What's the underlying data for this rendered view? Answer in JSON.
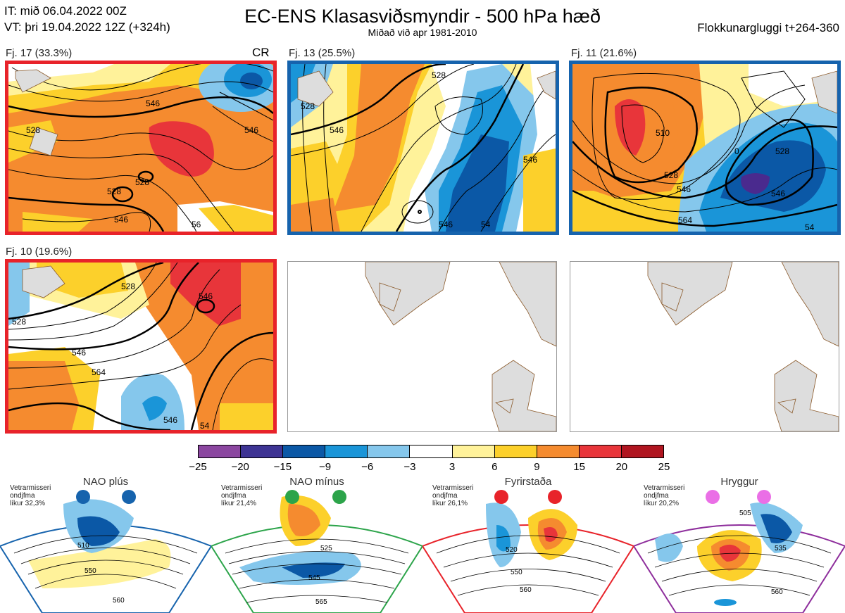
{
  "header": {
    "it_line": "IT: mið 06.04.2022 00Z",
    "vt_line": "VT: þri 19.04.2022 12Z  (+324h)",
    "title": "EC-ENS Klasasviðsmyndir - 500 hPa hæð",
    "subtitle": "Miðað við apr 1981-2010",
    "window": "Flokkunargluggi t+264-360"
  },
  "clusters": [
    {
      "label": "Fj. 17 (33.3%)",
      "tag": "CR",
      "frame": "#e8232a",
      "contours": [
        "528",
        "546",
        "528",
        "546",
        "528",
        "546",
        "56"
      ]
    },
    {
      "label": "Fj. 13 (25.5%)",
      "tag": "",
      "frame": "#1663ad",
      "contours": [
        "528",
        "546",
        "546",
        "528",
        "546",
        "54"
      ]
    },
    {
      "label": "Fj. 11 (21.6%)",
      "tag": "",
      "frame": "#1663ad",
      "contours": [
        "510",
        "528",
        "546",
        "564",
        "528",
        "546",
        "0",
        "54"
      ]
    },
    {
      "label": "Fj. 10 (19.6%)",
      "tag": "",
      "frame": "#e8232a",
      "contours": [
        "528",
        "546",
        "528",
        "546",
        "564",
        "546",
        "54"
      ]
    }
  ],
  "colorbar": {
    "colors": [
      "#8b46a0",
      "#3e3494",
      "#0b58a6",
      "#1a95d8",
      "#85c7ec",
      "#ffffff",
      "#fff29a",
      "#fcd02b",
      "#f58b2f",
      "#e8353a",
      "#b01520"
    ],
    "ticks": [
      "−25",
      "−20",
      "−15",
      "−9",
      "−6",
      "−3",
      "3",
      "6",
      "9",
      "15",
      "20",
      "25"
    ]
  },
  "regimes": [
    {
      "name": "NAO plús",
      "note_1": "Vetrarmisseri",
      "note_2": "ondjfma",
      "note_3": "líkur 32,3%",
      "color": "#1663ad",
      "labels": [
        "510",
        "550",
        "560"
      ]
    },
    {
      "name": "NAO mínus",
      "note_1": "Vetrarmisseri",
      "note_2": "ondjfma",
      "note_3": "líkur 21,4%",
      "color": "#2ca44a",
      "labels": [
        "525",
        "545",
        "565"
      ]
    },
    {
      "name": "Fyrirstaða",
      "note_1": "Vetrarmisseri",
      "note_2": "ondjfma",
      "note_3": "líkur 26,1%",
      "color": "#e8232a",
      "labels": [
        "520",
        "550",
        "560"
      ]
    },
    {
      "name": "Hryggur",
      "note_1": "Vetrarmisseri",
      "note_2": "ondjfma",
      "note_3": "líkur 20,2%",
      "color": "#8e2e9c",
      "labels": [
        "505",
        "535",
        "560"
      ]
    }
  ]
}
